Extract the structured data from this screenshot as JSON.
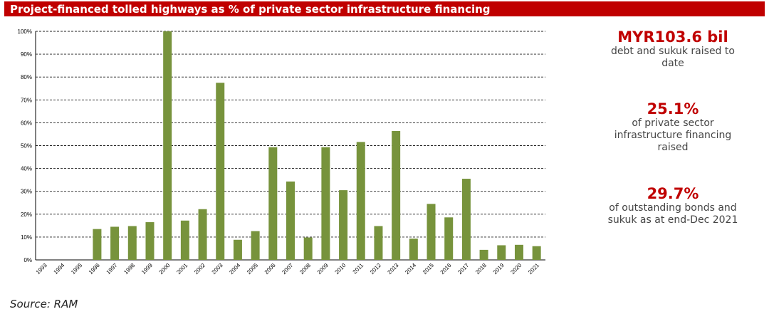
{
  "header": {
    "title": "Project-financed tolled highways as % of private sector infrastructure financing"
  },
  "stats": [
    {
      "value": "MYR103.6 bil",
      "desc": "debt and sukuk raised to date"
    },
    {
      "value": "25.1%",
      "desc": "of private sector infrastructure financing raised"
    },
    {
      "value": "29.7%",
      "desc": "of outstanding bonds and sukuk as at end-Dec 2021"
    }
  ],
  "source": "Source: RAM",
  "colors": {
    "title_bar": "#c00000",
    "bar": "#77933c",
    "accent_text": "#c00000"
  },
  "chart_data": {
    "type": "bar",
    "title": "",
    "xlabel": "",
    "ylabel": "",
    "ylim": [
      0,
      100
    ],
    "y_tick_values": [
      0,
      10,
      20,
      30,
      40,
      50,
      60,
      70,
      80,
      90,
      100
    ],
    "y_tick_labels": [
      "0%",
      "10%",
      "20%",
      "30%",
      "40%",
      "50%",
      "60%",
      "70%",
      "80%",
      "90%",
      "100%"
    ],
    "grid": true,
    "categories": [
      "1993",
      "1994",
      "1995",
      "1996",
      "1997",
      "1998",
      "1999",
      "2000",
      "2001",
      "2002",
      "2003",
      "2004",
      "2005",
      "2006",
      "2007",
      "2008",
      "2009",
      "2010",
      "2011",
      "2012",
      "2013",
      "2014",
      "2015",
      "2016",
      "2017",
      "2018",
      "2019",
      "2020",
      "2021"
    ],
    "values": [
      0,
      0,
      0,
      13.5,
      14.5,
      14.8,
      16.5,
      100,
      17.2,
      22.2,
      77.5,
      8.8,
      12.6,
      49.3,
      34.3,
      9.8,
      49.3,
      30.5,
      51.6,
      14.8,
      56.4,
      9.3,
      24.5,
      18.6,
      35.5,
      4.4,
      6.4,
      6.6,
      6.0
    ]
  }
}
